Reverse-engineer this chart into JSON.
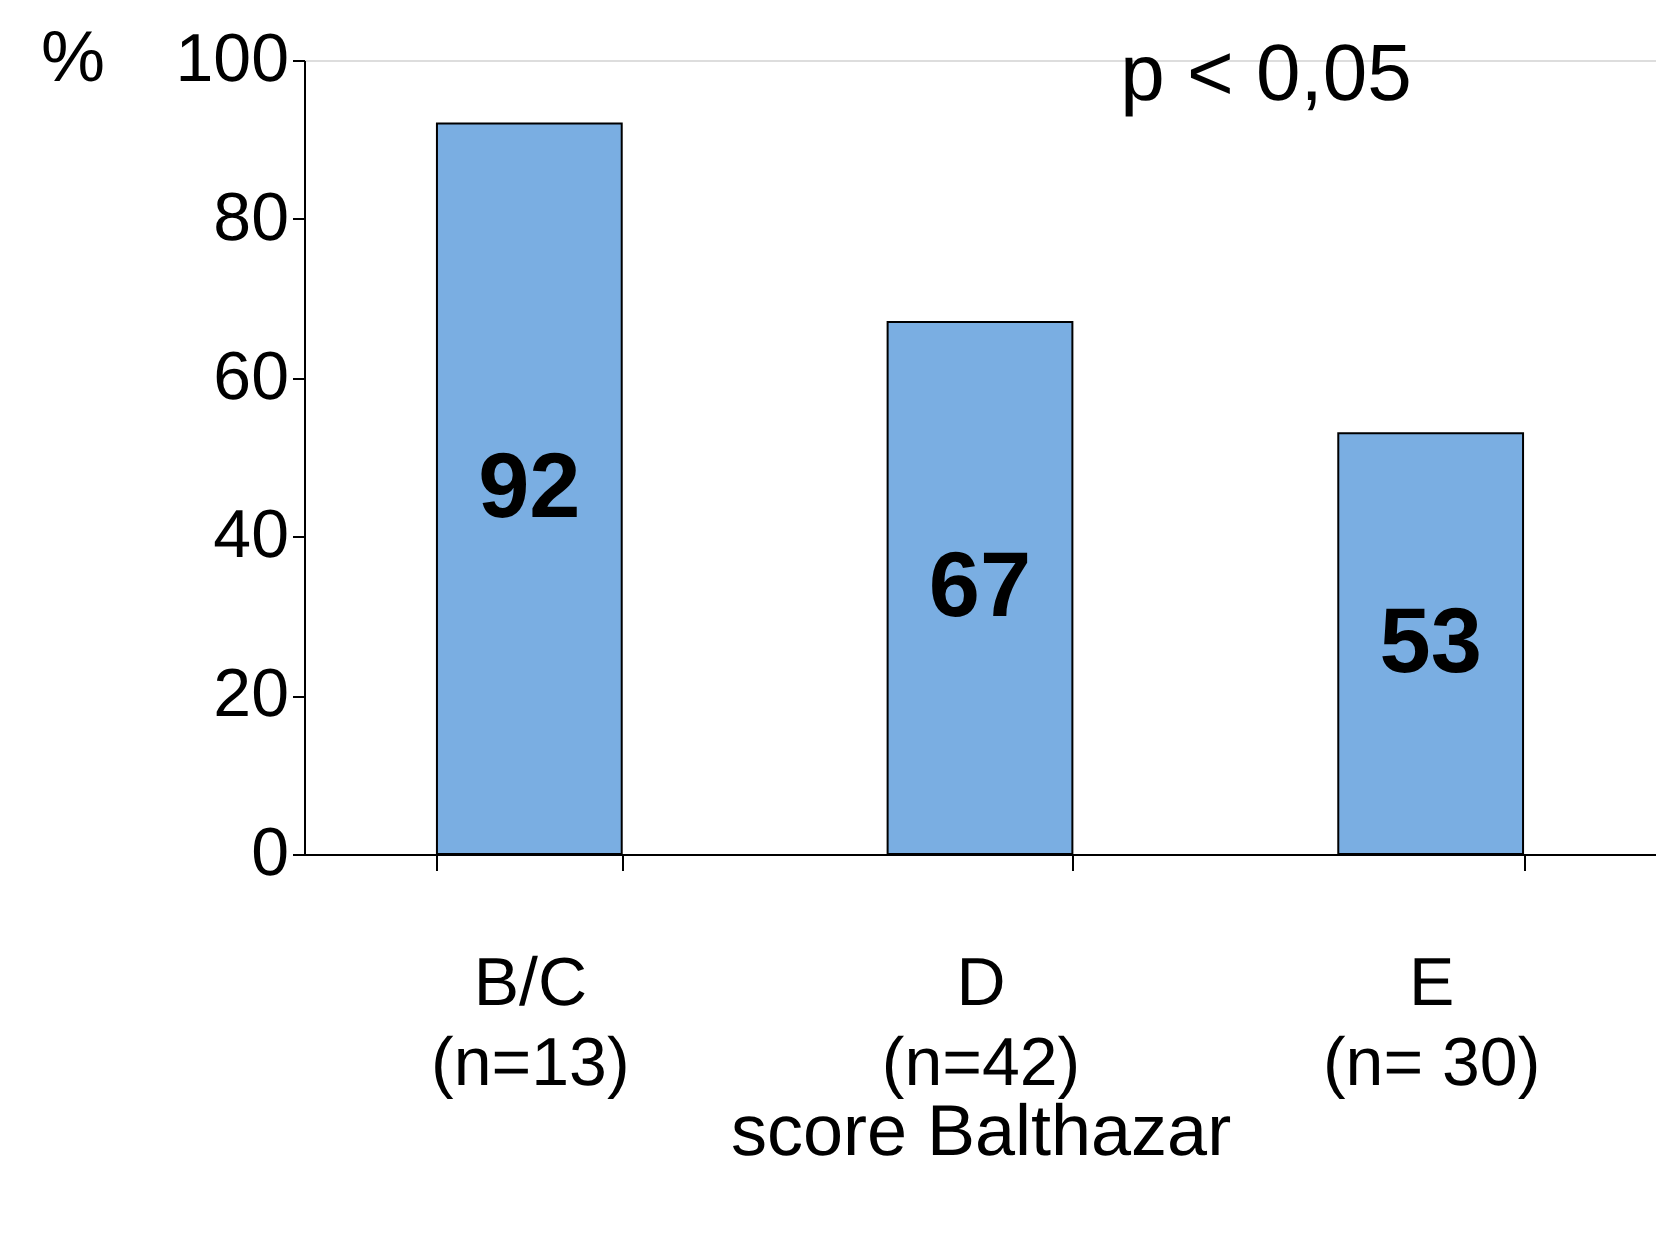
{
  "chart_data": {
    "type": "bar",
    "categories": [
      "B/C\n(n=13)",
      "D\n(n=42)",
      "E\n(n= 30)"
    ],
    "values": [
      92,
      67,
      53
    ],
    "color": "#7aaee2",
    "ylabel": "%",
    "xlabel": "score Balthazar",
    "annotations": [
      "p < 0,05"
    ],
    "ylim": [
      0,
      100
    ],
    "yticks": [
      0,
      20,
      40,
      60,
      80,
      100
    ],
    "data_labels": true,
    "grid": false,
    "legend": false
  }
}
